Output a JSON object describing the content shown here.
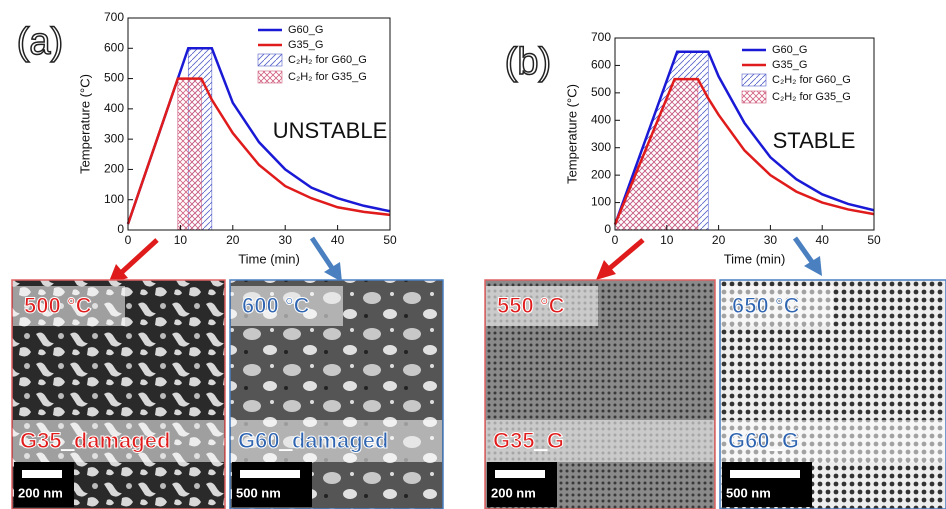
{
  "chart_data": [
    {
      "type": "line",
      "label": "(a)",
      "annotation": "UNSTABLE",
      "xlabel": "Time (min)",
      "ylabel": "Temperature (°C)",
      "xlim": [
        0,
        50
      ],
      "xticks": [
        0,
        10,
        20,
        30,
        40,
        50
      ],
      "ylim": [
        0,
        700
      ],
      "yticks": [
        0,
        100,
        200,
        300,
        400,
        500,
        600,
        700
      ],
      "series": [
        {
          "name": "G60_G",
          "color": "#1a1ad6",
          "x": [
            0,
            9.5,
            11.5,
            14,
            16,
            20,
            25,
            30,
            35,
            40,
            45,
            50
          ],
          "values": [
            20,
            499,
            600,
            600,
            600,
            420,
            290,
            200,
            140,
            105,
            80,
            62
          ]
        },
        {
          "name": "G35_G",
          "color": "#e01b1b",
          "x": [
            0,
            9.5,
            11.5,
            14,
            16,
            20,
            25,
            30,
            35,
            40,
            45,
            50
          ],
          "values": [
            20,
            500,
            500,
            500,
            430,
            320,
            215,
            145,
            105,
            75,
            60,
            50
          ]
        }
      ],
      "spans": [
        {
          "name": "C₂H₂ for G60_G",
          "color": "#5560c8",
          "series": 0,
          "range": [
            11.5,
            16
          ]
        },
        {
          "name": "C₂H₂ for G35_G",
          "color": "#d06080",
          "series": 1,
          "range": [
            9.5,
            14
          ]
        }
      ]
    },
    {
      "type": "line",
      "label": "(b)",
      "annotation": "STABLE",
      "xlabel": "Time (min)",
      "ylabel": "Temperature (°C)",
      "xlim": [
        0,
        50
      ],
      "xticks": [
        0,
        10,
        20,
        30,
        40,
        50
      ],
      "ylim": [
        0,
        700
      ],
      "yticks": [
        0,
        100,
        200,
        300,
        400,
        500,
        600,
        700
      ],
      "series": [
        {
          "name": "G60_G",
          "color": "#1a1ad6",
          "x": [
            0,
            11.5,
            12,
            16,
            18,
            20,
            25,
            30,
            35,
            40,
            45,
            50
          ],
          "values": [
            20,
            624,
            650,
            650,
            650,
            560,
            390,
            265,
            185,
            130,
            95,
            72
          ]
        },
        {
          "name": "G35_G",
          "color": "#e01b1b",
          "x": [
            0,
            11.5,
            12,
            16,
            18,
            20,
            25,
            30,
            35,
            40,
            45,
            50
          ],
          "values": [
            20,
            550,
            550,
            550,
            480,
            420,
            290,
            200,
            140,
            100,
            75,
            58
          ]
        }
      ],
      "spans": [
        {
          "name": "C₂H₂ for G60_G",
          "color": "#5560c8",
          "series": 0,
          "range": [
            0,
            18
          ]
        },
        {
          "name": "C₂H₂ for G35_G",
          "color": "#d06080",
          "series": 1,
          "range": [
            0,
            16
          ]
        }
      ]
    }
  ],
  "images": [
    {
      "temperature": "500 °C",
      "sample": "G35_damaged",
      "scale": "200 nm"
    },
    {
      "temperature": "600 °C",
      "sample": "G60_damaged",
      "scale": "500 nm"
    },
    {
      "temperature": "550 °C",
      "sample": "G35_G",
      "scale": "200 nm"
    },
    {
      "temperature": "650 °C",
      "sample": "G60_G",
      "scale": "500 nm"
    }
  ]
}
